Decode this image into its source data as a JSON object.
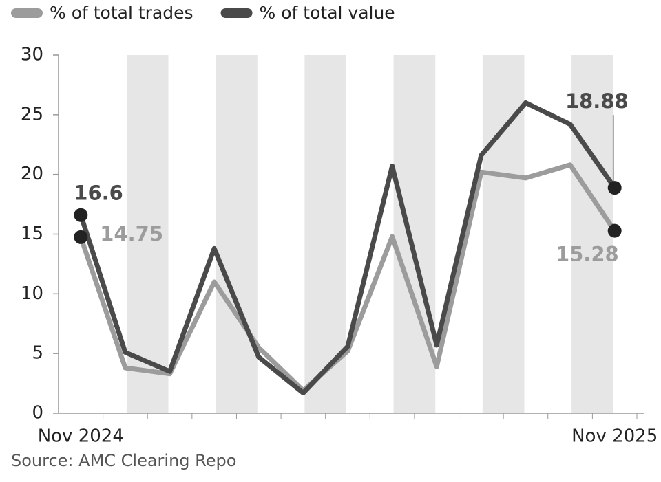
{
  "chart_data": {
    "type": "line",
    "categories": [
      "Nov 2024",
      null,
      null,
      null,
      null,
      null,
      null,
      null,
      null,
      null,
      null,
      null,
      "Nov 2025"
    ],
    "series": [
      {
        "name": "% of total trades",
        "color": "#9c9c9c",
        "values": [
          14.75,
          3.8,
          3.3,
          11.0,
          5.5,
          1.9,
          5.2,
          14.8,
          3.9,
          20.2,
          19.7,
          20.8,
          15.28
        ]
      },
      {
        "name": "% of total value",
        "color": "#4a4a4a",
        "values": [
          16.6,
          5.1,
          3.5,
          13.8,
          4.7,
          1.7,
          5.6,
          20.7,
          5.7,
          21.6,
          26.0,
          24.2,
          18.88
        ]
      }
    ],
    "ylim": [
      0,
      30
    ],
    "yticks": [
      0,
      5,
      10,
      15,
      20,
      25,
      30
    ],
    "grid": false,
    "source": "Source: AMC Clearing Repo"
  }
}
